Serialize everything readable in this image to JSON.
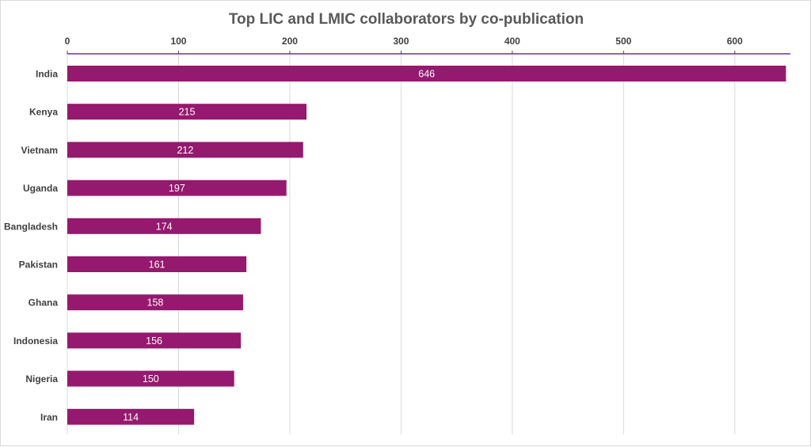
{
  "chart_data": {
    "type": "bar",
    "orientation": "horizontal",
    "title": "Top LIC and LMIC collaborators by co-publication",
    "categories": [
      "India",
      "Kenya",
      "Vietnam",
      "Uganda",
      "Bangladesh",
      "Pakistan",
      "Ghana",
      "Indonesia",
      "Nigeria",
      "Iran"
    ],
    "values": [
      646,
      215,
      212,
      197,
      174,
      161,
      158,
      156,
      150,
      114
    ],
    "xlim": [
      0,
      650
    ],
    "xticks": [
      0,
      100,
      200,
      300,
      400,
      500,
      600
    ],
    "axis_position": "top",
    "grid": true,
    "data_labels": true,
    "bar_color": "#95196e",
    "axis_color": "#7030a0",
    "grid_color": "#d9d9d9"
  }
}
